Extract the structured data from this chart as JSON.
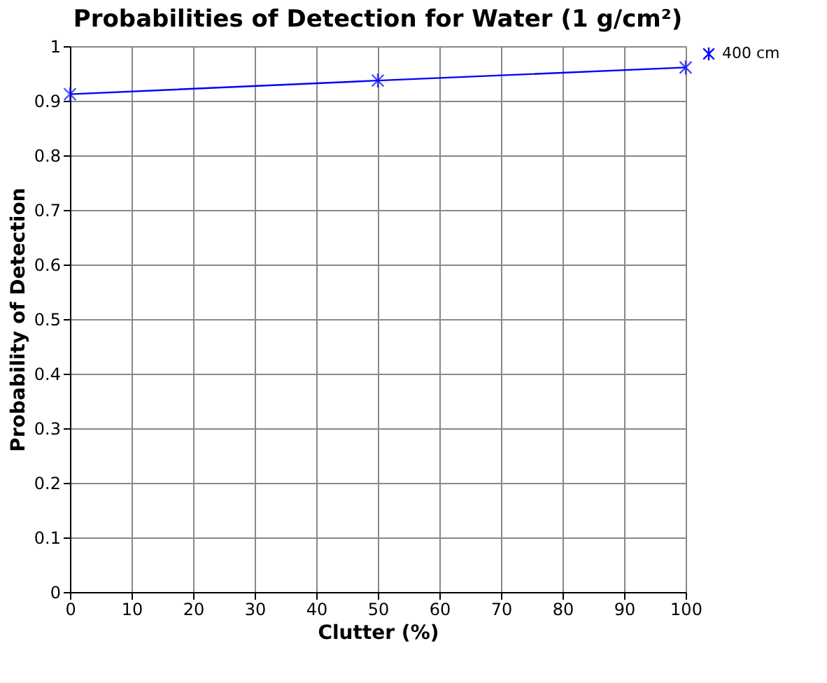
{
  "chart_data": {
    "type": "line",
    "title": "Probabilities of Detection for Water (1 g/cm²)",
    "xlabel": "Clutter (%)",
    "ylabel": "Probability of Detection",
    "x": [
      0,
      50,
      100
    ],
    "series": [
      {
        "name": "400 cm",
        "color": "#0000ff",
        "values": [
          0.912,
          0.937,
          0.961
        ]
      }
    ],
    "xlim": [
      0,
      100
    ],
    "xticks": [
      0,
      10,
      20,
      30,
      40,
      50,
      60,
      70,
      80,
      90,
      100
    ],
    "ylim": [
      0,
      1
    ],
    "yticks": [
      0,
      0.1,
      0.2,
      0.3,
      0.4,
      0.5,
      0.6,
      0.7,
      0.8,
      0.9,
      1
    ],
    "grid": true,
    "legend": "right",
    "marker": "cross",
    "line_style": "solid"
  }
}
